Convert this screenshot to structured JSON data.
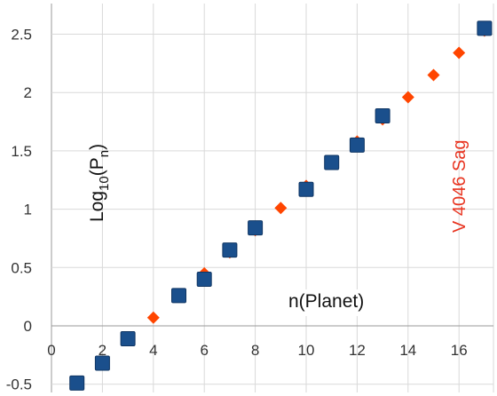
{
  "chart_data": {
    "type": "scatter",
    "xlim": [
      0,
      17
    ],
    "ylim": [
      -0.55,
      2.6
    ],
    "x_ticks": [
      0,
      2,
      4,
      6,
      8,
      10,
      12,
      14,
      16
    ],
    "y_ticks": [
      -0.5,
      0,
      0.5,
      1,
      1.5,
      2,
      2.5
    ],
    "x_tick_labels": [
      "0",
      "2",
      "4",
      "6",
      "8",
      "10",
      "12",
      "14",
      "16"
    ],
    "y_tick_labels": [
      "-0.5",
      "0",
      "0.5",
      "1",
      "1.5",
      "2",
      "2.5"
    ],
    "grid": "vertical and horizontal",
    "legend": "none",
    "ylabel_parts": {
      "base": "Log",
      "sub1": "10",
      "open": "(P",
      "sub2": "n",
      "close": ")"
    },
    "xlabel": "n(Planet)",
    "annotation": "V 4046 Sag",
    "series": [
      {
        "marker": "diamond",
        "color": "#ff4500",
        "x": [
          1,
          2,
          3,
          4,
          5,
          6,
          7,
          8,
          9,
          10,
          11,
          12,
          13,
          14,
          15,
          16,
          17
        ],
        "y": [
          -0.49,
          -0.32,
          -0.12,
          0.07,
          0.26,
          0.45,
          0.63,
          0.82,
          1.01,
          1.2,
          1.39,
          1.58,
          1.77,
          1.96,
          2.15,
          2.34,
          2.53
        ]
      },
      {
        "marker": "square",
        "color": "#1a4f8c",
        "x": [
          1,
          2,
          3,
          5,
          6,
          7,
          8,
          10,
          11,
          12,
          13,
          17
        ],
        "y": [
          -0.49,
          -0.32,
          -0.11,
          0.26,
          0.4,
          0.65,
          0.84,
          1.17,
          1.4,
          1.55,
          1.8,
          2.55
        ]
      }
    ]
  }
}
